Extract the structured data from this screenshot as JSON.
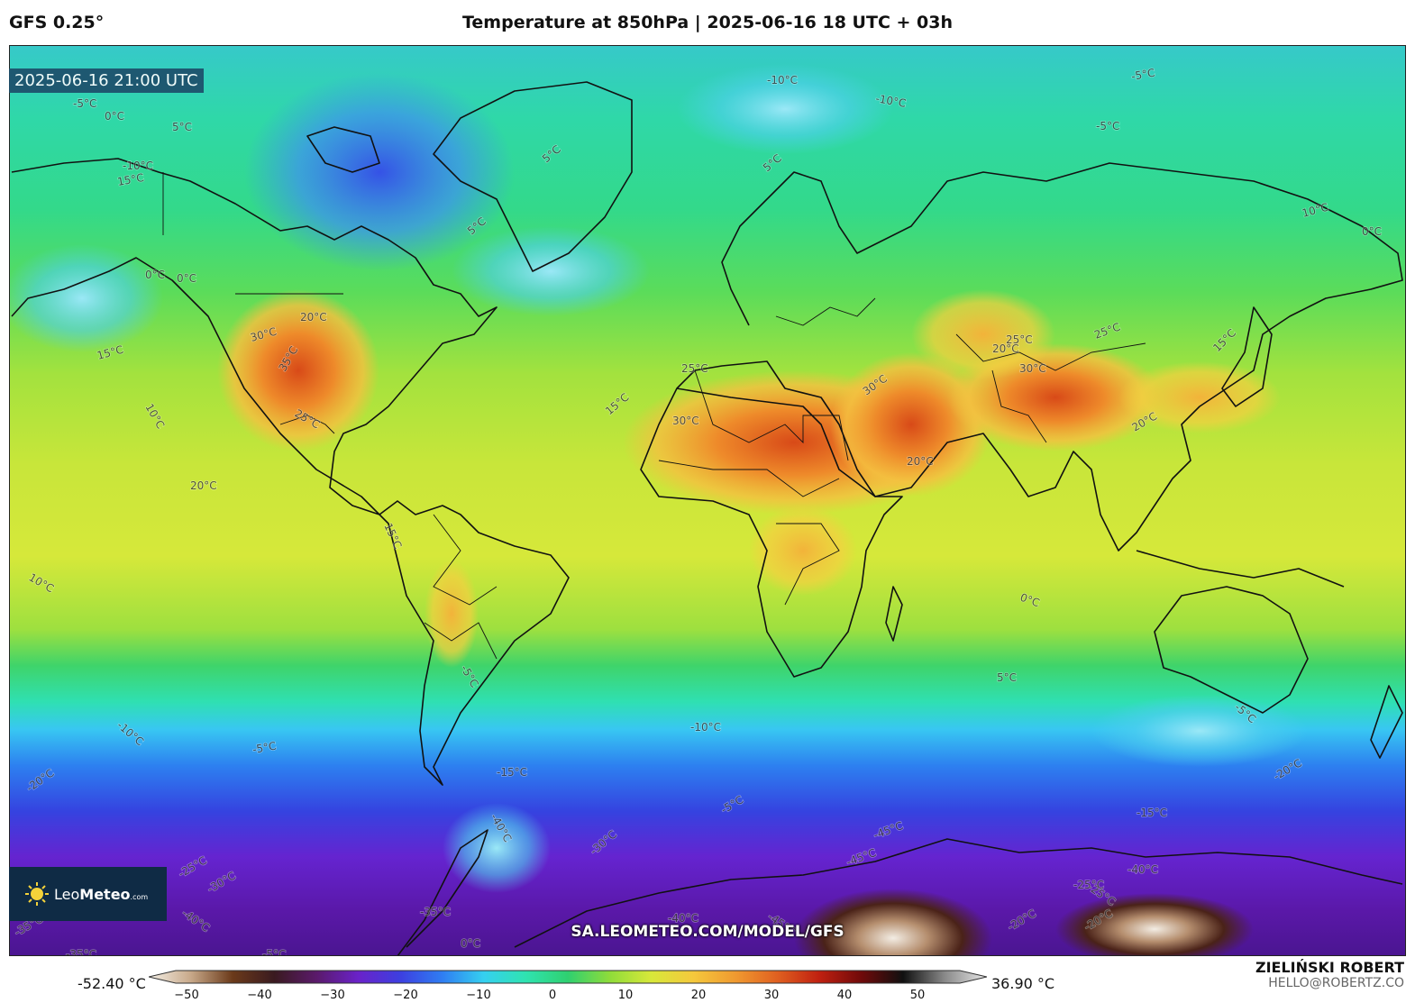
{
  "header": {
    "model": "GFS 0.25°",
    "title": "Temperature at 850hPa | 2025-06-16 18 UTC + 03h"
  },
  "timestamp": "2025-06-16 21:00 UTC",
  "logo": {
    "brand_light": "Leo",
    "brand_bold": "Meteo",
    "brand_suffix": ".com"
  },
  "url": "SA.LEOMETEO.COM/MODEL/GFS",
  "colorbar": {
    "min_label": "-52.40 °C",
    "max_label": "36.90 °C",
    "ticks": [
      "−50",
      "−40",
      "−30",
      "−20",
      "−10",
      "0",
      "10",
      "20",
      "30",
      "40",
      "50"
    ],
    "colors": [
      "#f4efe6",
      "#c8a98a",
      "#6b3a1a",
      "#3a1a20",
      "#5a1a6a",
      "#6a22c9",
      "#3d3fe0",
      "#2f7df2",
      "#35d0f0",
      "#2fe3b0",
      "#2fd070",
      "#8fdc3a",
      "#d8e83a",
      "#f5c83c",
      "#f09a30",
      "#e06020",
      "#c02010",
      "#700a0a",
      "#101010",
      "#8a8a8a",
      "#e8e8e8"
    ]
  },
  "author": {
    "name": "ZIELIŃSKI ROBERT",
    "email": "HELLO@ROBERTZ.CO"
  },
  "map_labels": [
    "-10°C",
    "-10°C",
    "-5°C",
    "-5°C",
    "-5°C",
    "0°C",
    "5°C",
    "-10°C",
    "15°C",
    "5°C",
    "5°C",
    "5°C",
    "10°C",
    "0°C",
    "0°C",
    "0°C",
    "20°C",
    "30°C",
    "35°C",
    "15°C",
    "10°C",
    "25°C",
    "25°C",
    "30°C",
    "15°C",
    "30°C",
    "20°C",
    "25°C",
    "25°C",
    "30°C",
    "20°C",
    "20°C",
    "15°C",
    "20°C",
    "15°C",
    "10°C",
    "0°C",
    "5°C",
    "-5°C",
    "-5°C",
    "-10°C",
    "-10°C",
    "-5°C",
    "-15°C",
    "-20°C",
    "-20°C",
    "-15°C",
    "-5°C",
    "-30°C",
    "-40°C",
    "-45°C",
    "-45°C",
    "-40°C",
    "-25°C",
    "-25°C",
    "-25°C",
    "-30°C",
    "-40°C",
    "-35°C",
    "-40°C",
    "-45°C",
    "-20°C",
    "-20°C",
    "-35°C",
    "-35°C",
    "-5°C",
    "0°C"
  ]
}
